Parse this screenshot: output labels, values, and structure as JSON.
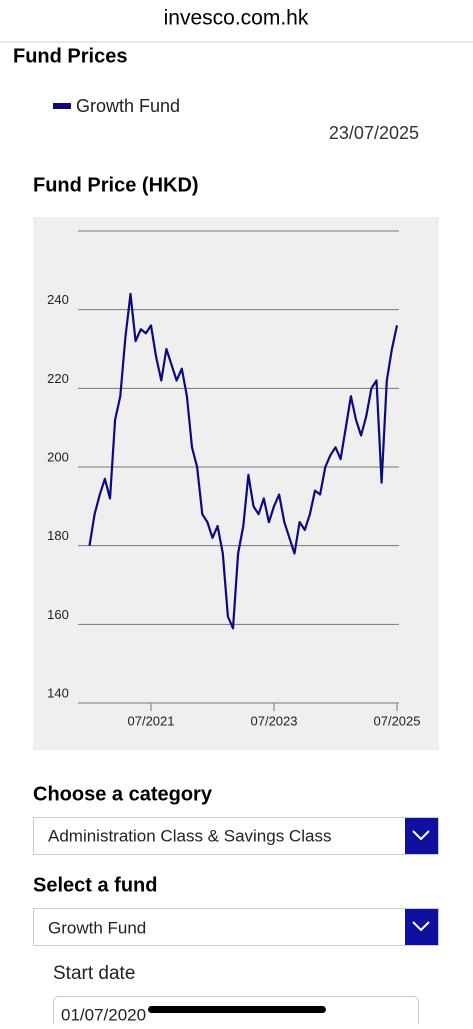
{
  "browser": {
    "url": "invesco.com.hk"
  },
  "page": {
    "heading": "Fund Prices",
    "date": "23/07/2025"
  },
  "chart_data": {
    "type": "line",
    "title": "Fund Price (HKD)",
    "x": [
      "07/2020",
      "08/2020",
      "09/2020",
      "10/2020",
      "11/2020",
      "12/2020",
      "01/2021",
      "02/2021",
      "03/2021",
      "04/2021",
      "05/2021",
      "06/2021",
      "07/2021",
      "08/2021",
      "09/2021",
      "10/2021",
      "11/2021",
      "12/2021",
      "01/2022",
      "02/2022",
      "03/2022",
      "04/2022",
      "05/2022",
      "06/2022",
      "07/2022",
      "08/2022",
      "09/2022",
      "10/2022",
      "11/2022",
      "12/2022",
      "01/2023",
      "02/2023",
      "03/2023",
      "04/2023",
      "05/2023",
      "06/2023",
      "07/2023",
      "08/2023",
      "09/2023",
      "10/2023",
      "11/2023",
      "12/2023",
      "01/2024",
      "02/2024",
      "03/2024",
      "04/2024",
      "05/2024",
      "06/2024",
      "07/2024",
      "08/2024",
      "09/2024",
      "10/2024",
      "11/2024",
      "12/2024",
      "01/2025",
      "02/2025",
      "03/2025",
      "04/2025",
      "05/2025",
      "06/2025",
      "07/2025"
    ],
    "series": [
      {
        "name": "Growth Fund",
        "color": "#0b0b7e",
        "values": [
          180,
          188,
          193,
          197,
          192,
          212,
          218,
          233,
          244,
          232,
          235,
          234,
          236,
          228,
          222,
          230,
          226,
          222,
          225,
          218,
          205,
          200,
          188,
          186,
          182,
          185,
          178,
          162,
          159,
          178,
          185,
          198,
          190,
          188,
          192,
          186,
          190,
          193,
          186,
          182,
          178,
          186,
          184,
          188,
          194,
          193,
          200,
          203,
          205,
          202,
          210,
          218,
          212,
          208,
          213,
          220,
          222,
          196,
          222,
          230,
          236
        ]
      }
    ],
    "xlim": [
      "07/2020",
      "07/2025"
    ],
    "xticks": [
      "07/2021",
      "07/2023",
      "07/2025"
    ],
    "ylim": [
      140,
      260
    ],
    "yticks": [
      140,
      160,
      180,
      200,
      220,
      240
    ],
    "grid": true
  },
  "form": {
    "category_label": "Choose a category",
    "category_value": "Administration Class & Savings Class",
    "fund_label": "Select a fund",
    "fund_value": "Growth Fund",
    "start_date_label": "Start date",
    "start_date_value": "01/07/2020"
  }
}
